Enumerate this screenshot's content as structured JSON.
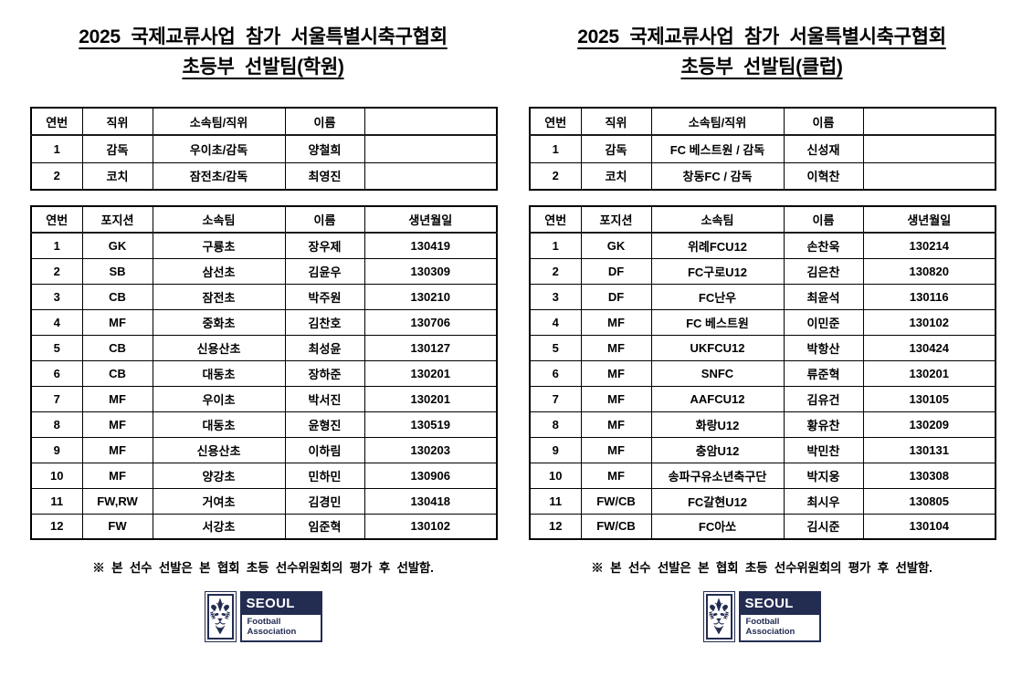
{
  "colors": {
    "navy": "#232d52",
    "border": "#000000",
    "text": "#000000"
  },
  "logo": {
    "title": "SEOUL",
    "subtitle_line1": "Football",
    "subtitle_line2": "Association",
    "emblem": "tiger-emblem"
  },
  "panels": [
    {
      "id": "academy",
      "title_line1": "2025 국제교류사업 참가 서울특별시축구협회",
      "title_line2": "초등부 선발팀(학원)",
      "staff_table": {
        "headers": [
          "연번",
          "직위",
          "소속팀/직위",
          "이름",
          ""
        ],
        "rows": [
          [
            "1",
            "감독",
            "우이초/감독",
            "양철희",
            ""
          ],
          [
            "2",
            "코치",
            "잠전초/감독",
            "최영진",
            ""
          ]
        ]
      },
      "player_table": {
        "headers": [
          "연번",
          "포지션",
          "소속팀",
          "이름",
          "생년월일"
        ],
        "rows": [
          [
            "1",
            "GK",
            "구룡초",
            "장우제",
            "130419"
          ],
          [
            "2",
            "SB",
            "삼선초",
            "김윤우",
            "130309"
          ],
          [
            "3",
            "CB",
            "잠전초",
            "박주원",
            "130210"
          ],
          [
            "4",
            "MF",
            "중화초",
            "김찬호",
            "130706"
          ],
          [
            "5",
            "CB",
            "신용산초",
            "최성윤",
            "130127"
          ],
          [
            "6",
            "CB",
            "대동초",
            "장하준",
            "130201"
          ],
          [
            "7",
            "MF",
            "우이초",
            "박서진",
            "130201"
          ],
          [
            "8",
            "MF",
            "대동초",
            "윤형진",
            "130519"
          ],
          [
            "9",
            "MF",
            "신용산초",
            "이하림",
            "130203"
          ],
          [
            "10",
            "MF",
            "양강초",
            "민하민",
            "130906"
          ],
          [
            "11",
            "FW,RW",
            "거여초",
            "김경민",
            "130418"
          ],
          [
            "12",
            "FW",
            "서강초",
            "임준혁",
            "130102"
          ]
        ]
      },
      "note": "※ 본 선수 선발은 본 협회 초등 선수위원회의 평가 후 선발함."
    },
    {
      "id": "club",
      "title_line1": "2025 국제교류사업 참가 서울특별시축구협회",
      "title_line2": "초등부 선발팀(클럽)",
      "staff_table": {
        "headers": [
          "연번",
          "직위",
          "소속팀/직위",
          "이름",
          ""
        ],
        "rows": [
          [
            "1",
            "감독",
            "FC 베스트원 / 감독",
            "신성재",
            ""
          ],
          [
            "2",
            "코치",
            "창동FC / 감독",
            "이혁찬",
            ""
          ]
        ]
      },
      "player_table": {
        "headers": [
          "연번",
          "포지션",
          "소속팀",
          "이름",
          "생년월일"
        ],
        "rows": [
          [
            "1",
            "GK",
            "위례FCU12",
            "손찬욱",
            "130214"
          ],
          [
            "2",
            "DF",
            "FC구로U12",
            "김은찬",
            "130820"
          ],
          [
            "3",
            "DF",
            "FC난우",
            "최윤석",
            "130116"
          ],
          [
            "4",
            "MF",
            "FC 베스트원",
            "이민준",
            "130102"
          ],
          [
            "5",
            "MF",
            "UKFCU12",
            "박항산",
            "130424"
          ],
          [
            "6",
            "MF",
            "SNFC",
            "류준혁",
            "130201"
          ],
          [
            "7",
            "MF",
            "AAFCU12",
            "김유건",
            "130105"
          ],
          [
            "8",
            "MF",
            "화랑U12",
            "황유찬",
            "130209"
          ],
          [
            "9",
            "MF",
            "충암U12",
            "박민찬",
            "130131"
          ],
          [
            "10",
            "MF",
            "송파구유소년축구단",
            "박지웅",
            "130308"
          ],
          [
            "11",
            "FW/CB",
            "FC갈현U12",
            "최시우",
            "130805"
          ],
          [
            "12",
            "FW/CB",
            "FC아쏘",
            "김시준",
            "130104"
          ]
        ]
      },
      "note": "※ 본 선수 선발은 본 협회 초등 선수위원회의 평가 후 선발함."
    }
  ]
}
